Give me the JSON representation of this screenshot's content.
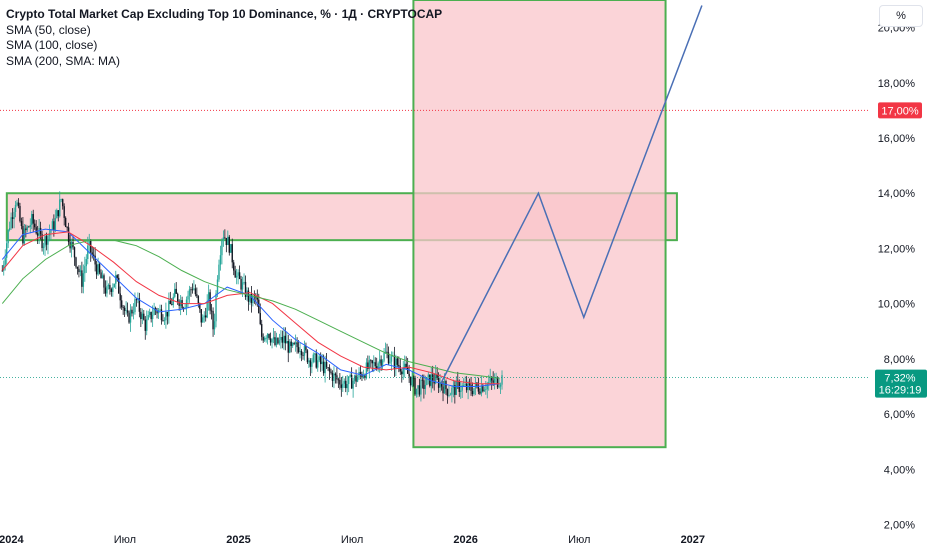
{
  "chart_data": {
    "type": "line",
    "title": "Crypto Total Market Cap Excluding Top 10 Dominance, % · 1Д · CRYPTOCAP",
    "indicators": [
      {
        "name": "SMA (50, close)",
        "color": "#2962ff"
      },
      {
        "name": "SMA (100, close)",
        "color": "#f23645"
      },
      {
        "name": "SMA (200, SMA: MA)",
        "color": "#4caf50"
      }
    ],
    "unit": "%",
    "y_ticks": [
      "2,00%",
      "4,00%",
      "6,00%",
      "8,00%",
      "10,00%",
      "12,00%",
      "14,00%",
      "16,00%",
      "18,00%",
      "20,00%"
    ],
    "x_ticks": [
      {
        "label": "2024",
        "x": 2024.0,
        "bold": true
      },
      {
        "label": "Июл",
        "x": 2024.5,
        "bold": false
      },
      {
        "label": "2025",
        "x": 2025.0,
        "bold": true
      },
      {
        "label": "Июл",
        "x": 2025.5,
        "bold": false
      },
      {
        "label": "2026",
        "x": 2026.0,
        "bold": true
      },
      {
        "label": "Июл",
        "x": 2026.5,
        "bold": false
      },
      {
        "label": "2027",
        "x": 2027.0,
        "bold": true
      }
    ],
    "ylim": [
      1.8,
      21.0
    ],
    "xlim": [
      2023.95,
      2027.78
    ],
    "price_anchors": [
      [
        2023.96,
        11.2
      ],
      [
        2023.99,
        12.8
      ],
      [
        2024.02,
        13.8
      ],
      [
        2024.05,
        12.4
      ],
      [
        2024.09,
        13.0
      ],
      [
        2024.14,
        12.2
      ],
      [
        2024.19,
        12.9
      ],
      [
        2024.22,
        13.8
      ],
      [
        2024.25,
        12.5
      ],
      [
        2024.28,
        11.7
      ],
      [
        2024.31,
        10.8
      ],
      [
        2024.34,
        12.1
      ],
      [
        2024.38,
        11.2
      ],
      [
        2024.42,
        10.4
      ],
      [
        2024.46,
        10.9
      ],
      [
        2024.51,
        9.4
      ],
      [
        2024.55,
        10.1
      ],
      [
        2024.59,
        9.2
      ],
      [
        2024.63,
        9.8
      ],
      [
        2024.68,
        9.6
      ],
      [
        2024.72,
        10.3
      ],
      [
        2024.76,
        10.0
      ],
      [
        2024.8,
        10.7
      ],
      [
        2024.84,
        9.3
      ],
      [
        2024.87,
        10.2
      ],
      [
        2024.89,
        9.0
      ],
      [
        2024.91,
        11.4
      ],
      [
        2024.93,
        12.6
      ],
      [
        2024.96,
        12.1
      ],
      [
        2024.99,
        11.0
      ],
      [
        2025.02,
        10.6
      ],
      [
        2025.05,
        10.1
      ],
      [
        2025.08,
        10.2
      ],
      [
        2025.1,
        8.8
      ],
      [
        2025.13,
        9.0
      ],
      [
        2025.16,
        8.5
      ],
      [
        2025.2,
        8.7
      ],
      [
        2025.23,
        8.3
      ],
      [
        2025.27,
        8.5
      ],
      [
        2025.31,
        8.0
      ],
      [
        2025.35,
        7.9
      ],
      [
        2025.4,
        7.5
      ],
      [
        2025.44,
        7.2
      ],
      [
        2025.48,
        7.1
      ],
      [
        2025.52,
        7.3
      ],
      [
        2025.56,
        7.6
      ],
      [
        2025.6,
        7.8
      ],
      [
        2025.65,
        8.2
      ],
      [
        2025.68,
        7.9
      ],
      [
        2025.72,
        7.7
      ],
      [
        2025.75,
        7.4
      ],
      [
        2025.78,
        6.9
      ],
      [
        2025.81,
        7.0
      ],
      [
        2025.85,
        7.3
      ],
      [
        2025.89,
        7.1
      ],
      [
        2025.93,
        6.8
      ],
      [
        2025.97,
        7.0
      ],
      [
        2026.02,
        6.9
      ],
      [
        2026.06,
        7.0
      ],
      [
        2026.1,
        7.1
      ],
      [
        2026.14,
        7.2
      ],
      [
        2026.16,
        7.32
      ]
    ],
    "sma50_anchors": [
      [
        2023.96,
        11.6
      ],
      [
        2024.05,
        12.5
      ],
      [
        2024.15,
        12.7
      ],
      [
        2024.25,
        12.6
      ],
      [
        2024.35,
        11.8
      ],
      [
        2024.45,
        11.0
      ],
      [
        2024.55,
        10.2
      ],
      [
        2024.65,
        9.7
      ],
      [
        2024.75,
        9.8
      ],
      [
        2024.85,
        10.0
      ],
      [
        2024.95,
        10.6
      ],
      [
        2025.05,
        10.3
      ],
      [
        2025.15,
        9.4
      ],
      [
        2025.25,
        8.7
      ],
      [
        2025.35,
        8.2
      ],
      [
        2025.45,
        7.6
      ],
      [
        2025.55,
        7.4
      ],
      [
        2025.65,
        7.8
      ],
      [
        2025.75,
        7.6
      ],
      [
        2025.85,
        7.2
      ],
      [
        2025.95,
        7.0
      ],
      [
        2026.05,
        7.0
      ],
      [
        2026.15,
        7.1
      ]
    ],
    "sma100_anchors": [
      [
        2023.96,
        11.2
      ],
      [
        2024.05,
        12.1
      ],
      [
        2024.15,
        12.5
      ],
      [
        2024.25,
        12.6
      ],
      [
        2024.35,
        12.1
      ],
      [
        2024.45,
        11.5
      ],
      [
        2024.55,
        10.8
      ],
      [
        2024.65,
        10.3
      ],
      [
        2024.75,
        10.0
      ],
      [
        2024.85,
        10.0
      ],
      [
        2024.95,
        10.3
      ],
      [
        2025.05,
        10.4
      ],
      [
        2025.15,
        10.0
      ],
      [
        2025.25,
        9.3
      ],
      [
        2025.35,
        8.6
      ],
      [
        2025.45,
        8.1
      ],
      [
        2025.55,
        7.7
      ],
      [
        2025.65,
        7.6
      ],
      [
        2025.75,
        7.7
      ],
      [
        2025.85,
        7.5
      ],
      [
        2025.95,
        7.2
      ],
      [
        2026.05,
        7.1
      ],
      [
        2026.15,
        7.1
      ]
    ],
    "sma200_anchors": [
      [
        2023.96,
        10.0
      ],
      [
        2024.05,
        10.9
      ],
      [
        2024.15,
        11.6
      ],
      [
        2024.25,
        12.1
      ],
      [
        2024.35,
        12.3
      ],
      [
        2024.45,
        12.3
      ],
      [
        2024.55,
        12.1
      ],
      [
        2024.65,
        11.7
      ],
      [
        2024.75,
        11.2
      ],
      [
        2024.85,
        10.8
      ],
      [
        2024.95,
        10.5
      ],
      [
        2025.05,
        10.3
      ],
      [
        2025.15,
        10.1
      ],
      [
        2025.25,
        9.8
      ],
      [
        2025.35,
        9.4
      ],
      [
        2025.45,
        9.0
      ],
      [
        2025.55,
        8.6
      ],
      [
        2025.65,
        8.2
      ],
      [
        2025.75,
        7.9
      ],
      [
        2025.85,
        7.7
      ],
      [
        2025.95,
        7.5
      ],
      [
        2026.05,
        7.4
      ],
      [
        2026.15,
        7.3
      ]
    ],
    "projection": [
      [
        2025.89,
        7.1
      ],
      [
        2026.32,
        14.0
      ],
      [
        2026.52,
        9.5
      ],
      [
        2027.04,
        20.8
      ]
    ],
    "zones": [
      {
        "x0": 2023.98,
        "x1": 2026.93,
        "y0": 12.3,
        "y1": 14.0
      },
      {
        "x0": 2025.77,
        "x1": 2026.88,
        "y0": 4.8,
        "y1": 21.0
      }
    ],
    "level_line": {
      "y": 17.0,
      "label": "17,00%",
      "color": "#f23645"
    },
    "last_value": {
      "y": 7.32,
      "label": "7,32%",
      "timer": "16:29:19",
      "color": "#089981"
    },
    "colors": {
      "up": "#26a69a",
      "down": "#131722",
      "zone_fill": "#f9c5cb",
      "zone_stroke": "#4caf50",
      "projection": "#4a6fb5"
    }
  }
}
